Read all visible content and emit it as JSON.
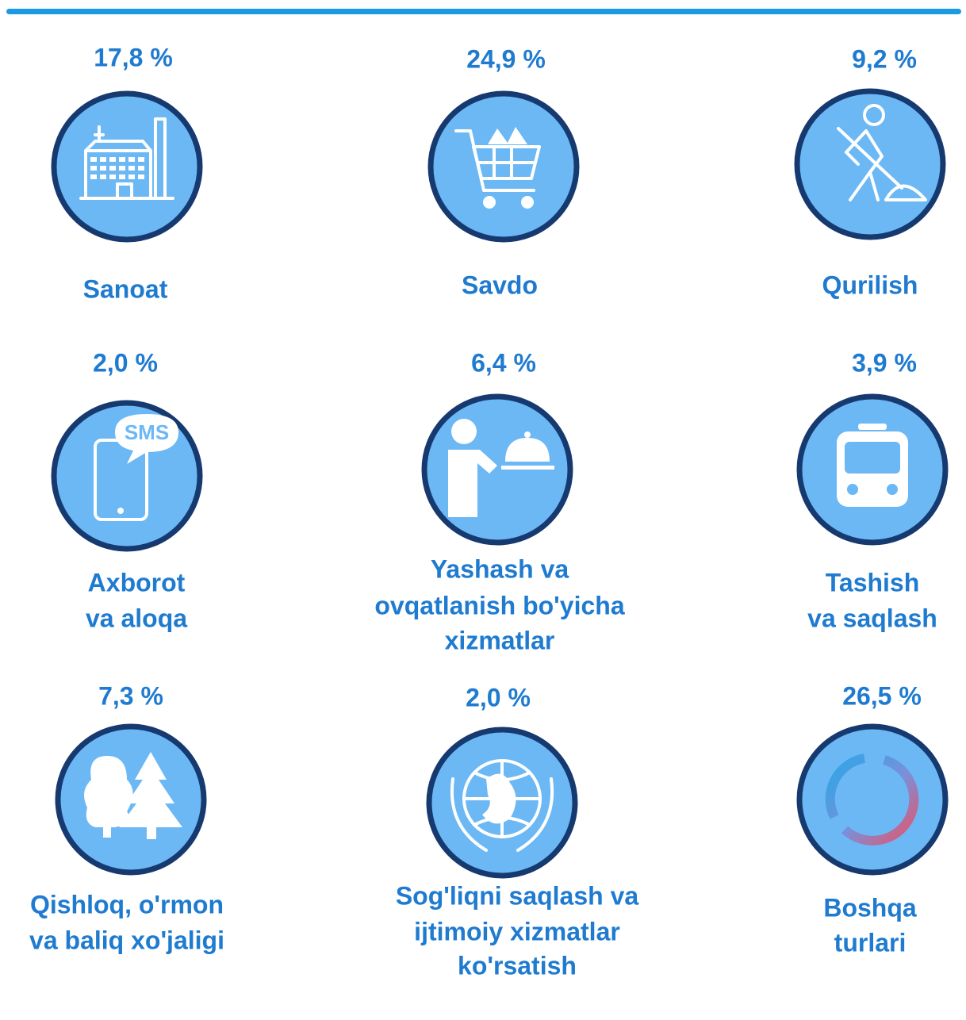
{
  "items": [
    {
      "percent": "17,8 %",
      "label": [
        "Sanoat"
      ]
    },
    {
      "percent": "24,9 %",
      "label": [
        "Savdo"
      ]
    },
    {
      "percent": "9,2 %",
      "label": [
        "Qurilish"
      ]
    },
    {
      "percent": "2,0 %",
      "label": [
        "Axborot",
        "va aloqa"
      ],
      "icon_text": "SMS"
    },
    {
      "percent": "6,4 %",
      "label": [
        "Yashash va",
        "ovqatlanish bo'yicha",
        "xizmatlar"
      ]
    },
    {
      "percent": "3,9 %",
      "label": [
        "Tashish",
        "va saqlash"
      ]
    },
    {
      "percent": "7,3 %",
      "label": [
        "Qishloq, o'rmon",
        "va baliq xo'jaligi"
      ]
    },
    {
      "percent": "2,0 %",
      "label": [
        "Sog'liqni saqlash va",
        "ijtimoiy xizmatlar",
        "ko'rsatish"
      ]
    },
    {
      "percent": "26,5 %",
      "label": [
        "Boshqa",
        "turlari"
      ]
    }
  ]
}
